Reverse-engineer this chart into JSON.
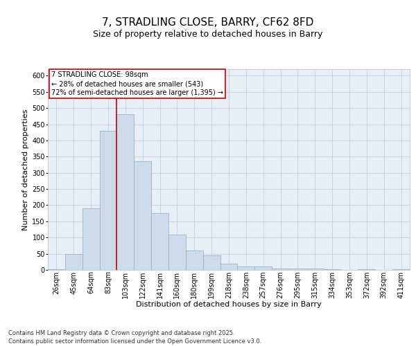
{
  "title_line1": "7, STRADLING CLOSE, BARRY, CF62 8FD",
  "title_line2": "Size of property relative to detached houses in Barry",
  "xlabel": "Distribution of detached houses by size in Barry",
  "ylabel": "Number of detached properties",
  "bar_labels": [
    "26sqm",
    "45sqm",
    "64sqm",
    "83sqm",
    "103sqm",
    "122sqm",
    "141sqm",
    "160sqm",
    "180sqm",
    "199sqm",
    "218sqm",
    "238sqm",
    "257sqm",
    "276sqm",
    "295sqm",
    "315sqm",
    "334sqm",
    "353sqm",
    "372sqm",
    "392sqm",
    "411sqm"
  ],
  "bar_values": [
    2,
    50,
    190,
    430,
    480,
    335,
    175,
    110,
    60,
    45,
    20,
    10,
    10,
    5,
    5,
    5,
    3,
    1,
    3,
    1,
    3
  ],
  "bar_color": "#ccdcec",
  "bar_edge_color": "#9ab5cc",
  "grid_color": "#c8d5e5",
  "background_color": "#e8eef6",
  "vline_x_index": 4,
  "vline_color": "#cc0000",
  "annotation_box_text": "7 STRADLING CLOSE: 98sqm\n← 28% of detached houses are smaller (543)\n72% of semi-detached houses are larger (1,395) →",
  "annotation_box_color": "#cc0000",
  "ylim": [
    0,
    620
  ],
  "yticks": [
    0,
    50,
    100,
    150,
    200,
    250,
    300,
    350,
    400,
    450,
    500,
    550,
    600
  ],
  "footer_text": "Contains HM Land Registry data © Crown copyright and database right 2025.\nContains public sector information licensed under the Open Government Licence v3.0.",
  "title_fontsize": 11,
  "subtitle_fontsize": 9,
  "axis_label_fontsize": 8,
  "tick_fontsize": 7,
  "annotation_fontsize": 7,
  "footer_fontsize": 6
}
